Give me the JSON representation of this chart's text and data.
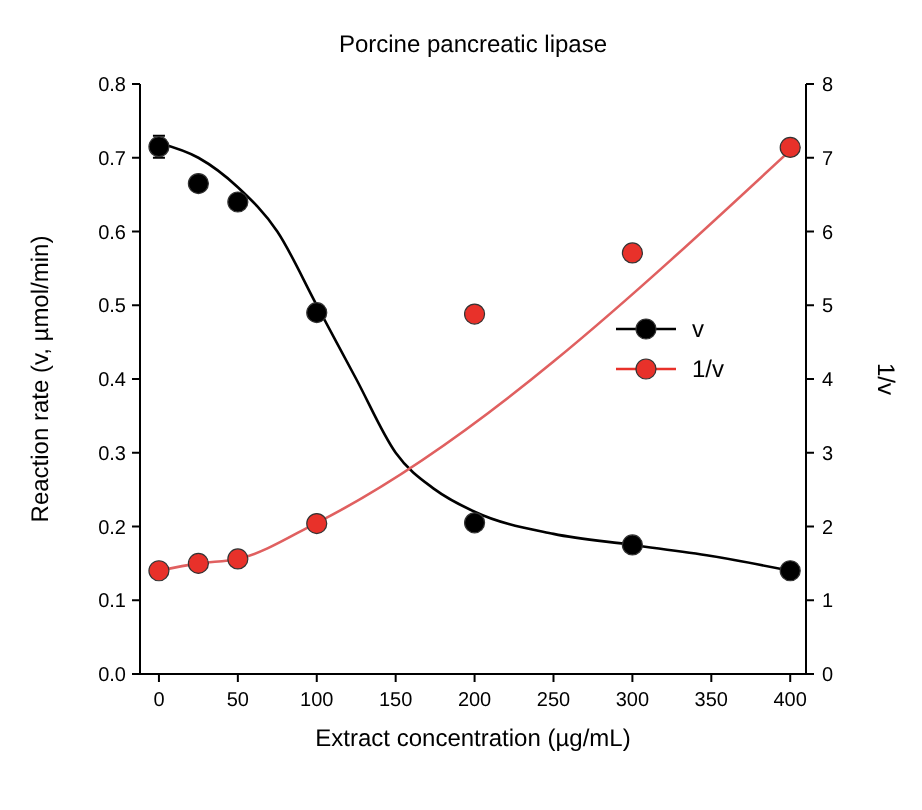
{
  "chart_data": {
    "type": "scatter",
    "title": "Porcine pancreatic lipase",
    "xlabel": "Extract concentration (µg/mL)",
    "ylabel": "Reaction rate (v, µmol/min)",
    "y2label": "1/v",
    "xlim": [
      -12,
      410
    ],
    "xticks": [
      0,
      50,
      100,
      150,
      200,
      250,
      300,
      350,
      400
    ],
    "ylim": [
      0,
      0.8
    ],
    "yticks": [
      {
        "value": 0,
        "label": "0.0"
      },
      0.1,
      0.2,
      0.3,
      0.4,
      0.5,
      0.6,
      0.7,
      0.8
    ],
    "y2lim": [
      0,
      8
    ],
    "y2ticks": [
      0,
      1,
      2,
      3,
      4,
      5,
      6,
      7,
      8
    ],
    "legend": "right",
    "marker": "circle",
    "grid": false,
    "series": [
      {
        "type": "line",
        "marker": "none",
        "color": "#000000",
        "x": [
          0,
          25,
          50,
          75,
          100,
          125,
          150,
          175,
          200,
          250,
          300,
          350,
          400
        ],
        "values": [
          0.72,
          0.7,
          0.66,
          0.6,
          0.5,
          0.4,
          0.3,
          0.25,
          0.22,
          0.19,
          0.175,
          0.16,
          0.14
        ]
      },
      {
        "type": "line",
        "marker": "none",
        "axis": "y2",
        "color": "#e06060",
        "x": [
          0,
          25,
          50,
          100,
          400
        ],
        "values": [
          1.4,
          1.5,
          1.56,
          2.05,
          7.1
        ]
      },
      {
        "name": "v",
        "color": "#000000",
        "x": [
          0,
          25,
          50,
          100,
          200,
          300,
          400
        ],
        "values": [
          0.715,
          0.665,
          0.64,
          0.49,
          0.205,
          0.175,
          0.14
        ],
        "errors": [
          0.015,
          null,
          null,
          null,
          null,
          null,
          null
        ]
      },
      {
        "name": "1/v",
        "axis": "y2",
        "color": "#e8312a",
        "x": [
          0,
          25,
          50,
          100,
          200,
          300,
          400
        ],
        "values": [
          1.4,
          1.5,
          1.56,
          2.04,
          4.88,
          5.71,
          7.14
        ]
      }
    ]
  }
}
